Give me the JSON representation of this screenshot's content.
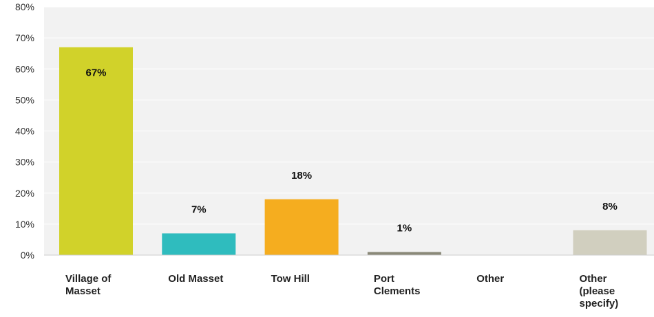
{
  "chart_data": {
    "type": "bar",
    "categories": [
      "Village of Masset",
      "Old Masset",
      "Tow Hill",
      "Port Clements",
      "Other",
      "Other (please specify)"
    ],
    "category_lines": [
      [
        "Village of",
        "Masset"
      ],
      [
        "Old Masset"
      ],
      [
        "Tow Hill"
      ],
      [
        "Port",
        "Clements"
      ],
      [
        "Other"
      ],
      [
        "Other",
        "(please",
        "specify)"
      ]
    ],
    "values": [
      67,
      7,
      18,
      1,
      0,
      8
    ],
    "data_labels": [
      "67%",
      "7%",
      "18%",
      "1%",
      "",
      "8%"
    ],
    "colors": [
      "#d1d22a",
      "#2fbcbe",
      "#f5ad1f",
      "#8a8978",
      "#cccccc",
      "#d1cfbf"
    ],
    "yticks": [
      "0%",
      "10%",
      "20%",
      "30%",
      "40%",
      "50%",
      "60%",
      "70%",
      "80%"
    ],
    "ylim": [
      0,
      80
    ],
    "grid": true,
    "plot_background": "#f2f2f2"
  }
}
